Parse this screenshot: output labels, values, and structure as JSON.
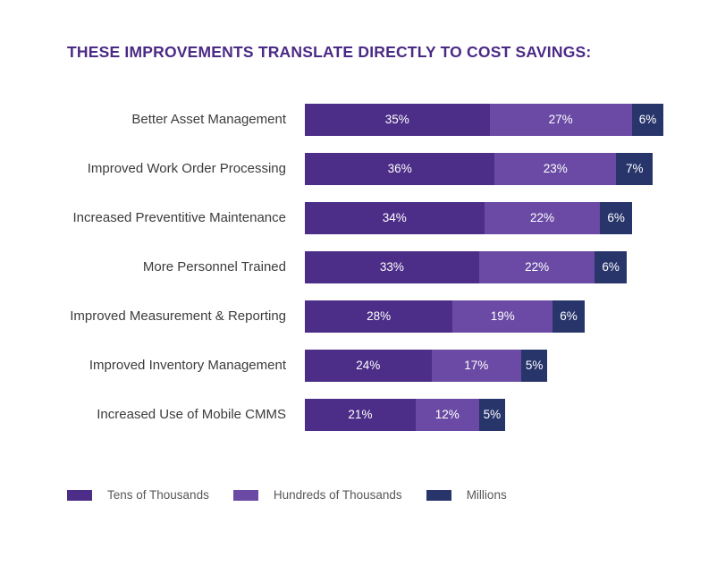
{
  "title": "THESE IMPROVEMENTS TRANSLATE DIRECTLY TO COST SAVINGS:",
  "colors": {
    "title": "#4b2a85",
    "category_label": "#3c3c3c",
    "value_label": "#ffffff",
    "legend_label": "#585858",
    "background": "#ffffff"
  },
  "chart_data": {
    "type": "bar",
    "orientation": "horizontal",
    "stacked": true,
    "grid": false,
    "legend_position": "bottom",
    "value_suffix": "%",
    "title": "THESE IMPROVEMENTS TRANSLATE DIRECTLY TO COST SAVINGS:",
    "xlabel": "",
    "ylabel": "",
    "categories": [
      "Better Asset Management",
      "Improved Work Order Processing",
      "Increased Preventitive Maintenance",
      "More Personnel Trained",
      "Improved Measurement & Reporting",
      "Improved Inventory Management",
      "Increased Use of Mobile CMMS"
    ],
    "series": [
      {
        "name": "Tens of Thousands",
        "color": "#4c2d87",
        "values": [
          35,
          36,
          34,
          33,
          28,
          24,
          21
        ]
      },
      {
        "name": "Hundreds of Thousands",
        "color": "#6a4aa4",
        "values": [
          27,
          23,
          22,
          22,
          19,
          17,
          12
        ]
      },
      {
        "name": "Millions",
        "color": "#28356b",
        "values": [
          6,
          7,
          6,
          6,
          6,
          5,
          5
        ]
      }
    ]
  },
  "legend": {
    "items": [
      {
        "label": "Tens of Thousands",
        "color": "#4c2d87"
      },
      {
        "label": "Hundreds of Thousands",
        "color": "#6a4aa4"
      },
      {
        "label": "Millions",
        "color": "#28356b"
      }
    ]
  }
}
